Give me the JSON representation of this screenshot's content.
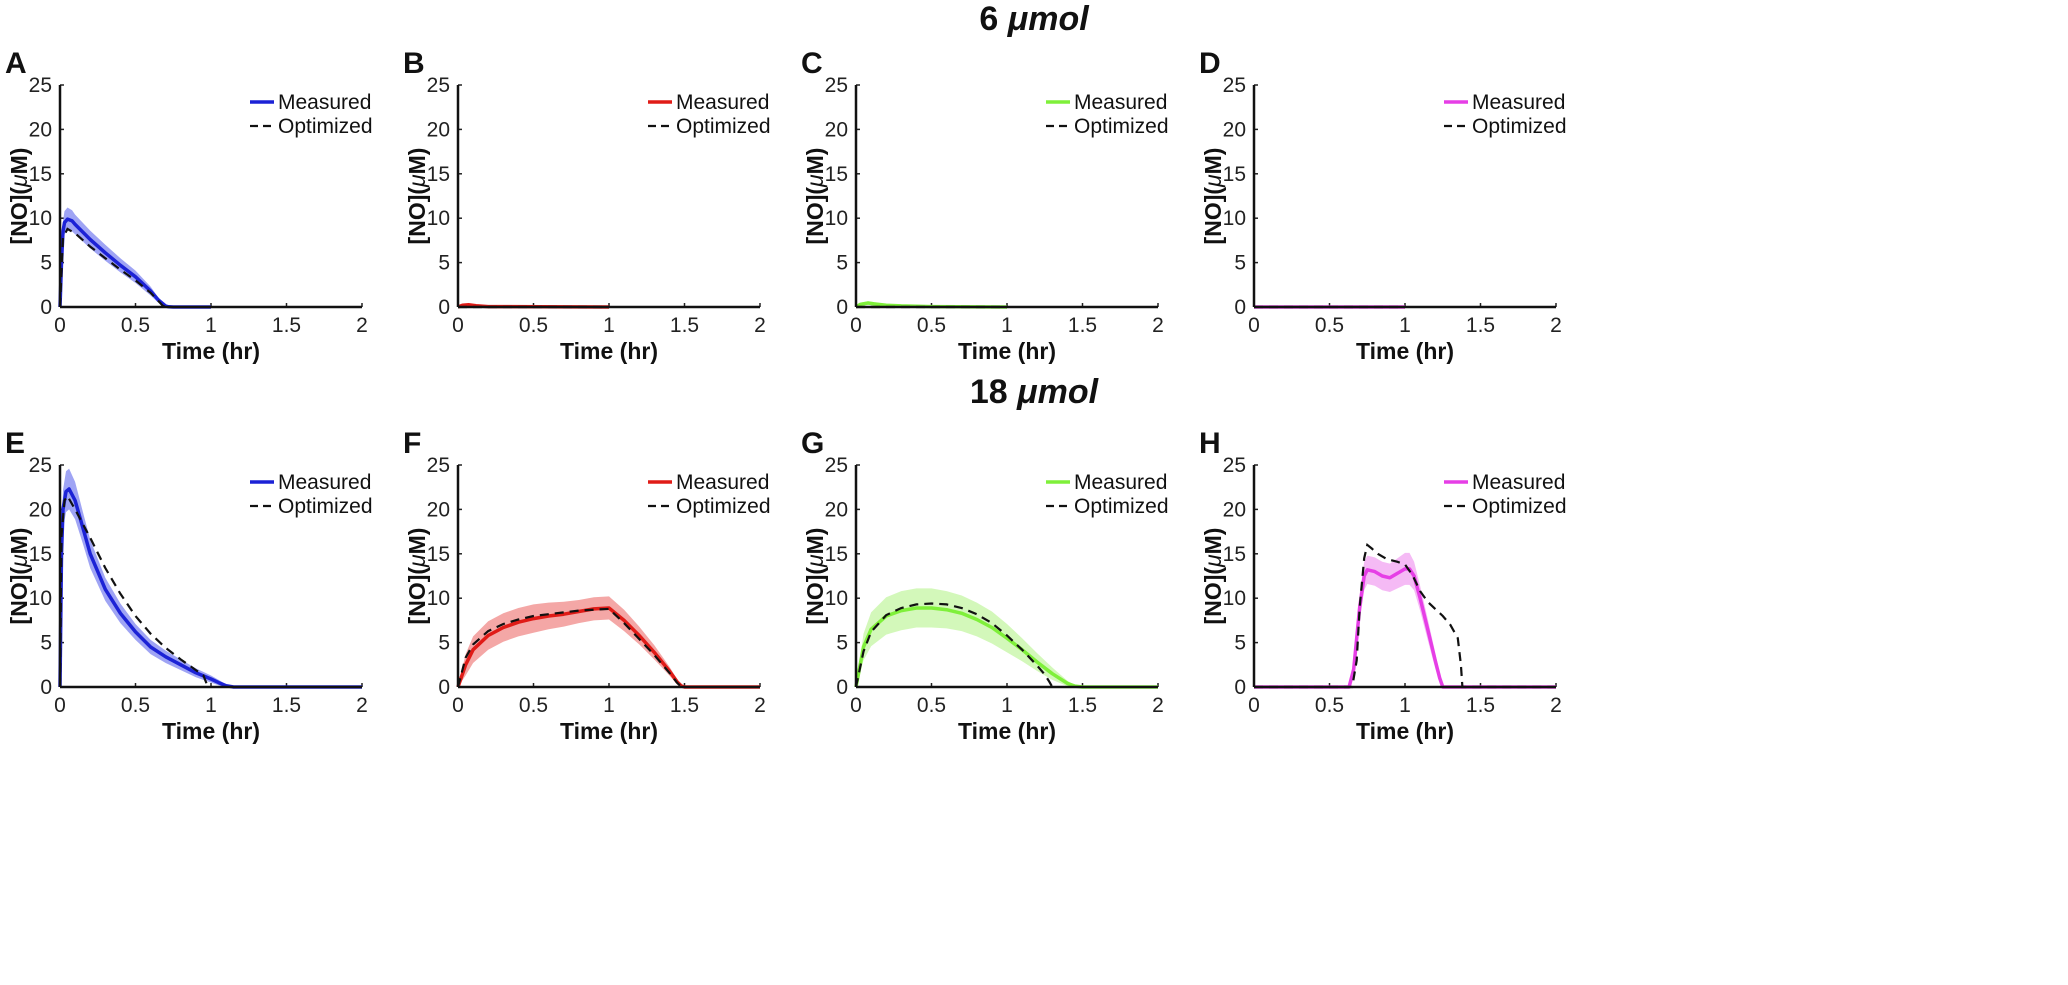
{
  "rows": [
    {
      "title_value": "6",
      "title_unit": "μmol"
    },
    {
      "title_value": "18",
      "title_unit": "μmol"
    }
  ],
  "chart_data": [
    {
      "type": "line",
      "panel": "A",
      "row": 0,
      "color": "#1c22d6",
      "band": "#7f86f0",
      "xlabel": "Time (hr)",
      "ylabel_main": "[NO](",
      "ylabel_mu": "μ",
      "ylabel_end": "M)",
      "xlim": [
        0,
        2
      ],
      "ylim": [
        0,
        25
      ],
      "xticks": [
        "0",
        "0.5",
        "1",
        "1.5",
        "2"
      ],
      "yticks": [
        "0",
        "5",
        "10",
        "15",
        "20",
        "25"
      ],
      "legend": [
        "Measured",
        "Optimized"
      ],
      "series": [
        {
          "name": "Measured",
          "x": [
            0,
            0.01,
            0.02,
            0.03,
            0.05,
            0.08,
            0.1,
            0.2,
            0.3,
            0.4,
            0.5,
            0.6,
            0.65,
            0.7,
            0.72,
            0.75,
            0.8,
            1.0
          ],
          "y": [
            0,
            5,
            8.5,
            9.5,
            9.9,
            9.7,
            9.3,
            7.6,
            6.1,
            4.7,
            3.4,
            1.8,
            0.8,
            0.1,
            0.02,
            0,
            0,
            0
          ],
          "band": [
            0,
            1,
            1.2,
            1.3,
            1.3,
            1.2,
            1.1,
            1.0,
            0.9,
            0.8,
            0.7,
            0.5,
            0.3,
            0.1,
            0,
            0,
            0,
            0
          ]
        },
        {
          "name": "Optimized",
          "x": [
            0,
            0.02,
            0.05,
            0.1,
            0.2,
            0.3,
            0.4,
            0.5,
            0.6,
            0.65,
            0.68,
            0.7
          ],
          "y": [
            0,
            7.8,
            8.8,
            8.3,
            6.8,
            5.5,
            4.2,
            3.0,
            1.6,
            0.7,
            0.15,
            0
          ]
        }
      ]
    },
    {
      "type": "line",
      "panel": "B",
      "row": 0,
      "color": "#e01b17",
      "band": "#f08a88",
      "xlabel": "Time (hr)",
      "ylabel_main": "[NO](",
      "ylabel_mu": "μ",
      "ylabel_end": "M)",
      "xlim": [
        0,
        2
      ],
      "ylim": [
        0,
        25
      ],
      "xticks": [
        "0",
        "0.5",
        "1",
        "1.5",
        "2"
      ],
      "yticks": [
        "0",
        "5",
        "10",
        "15",
        "20",
        "25"
      ],
      "legend": [
        "Measured",
        "Optimized"
      ],
      "series": [
        {
          "name": "Measured",
          "x": [
            0,
            0.03,
            0.07,
            0.12,
            0.2,
            1.0
          ],
          "y": [
            0,
            0.2,
            0.25,
            0.15,
            0.05,
            0
          ],
          "band": [
            0,
            0.1,
            0.1,
            0.1,
            0,
            0
          ]
        },
        {
          "name": "Optimized",
          "x": [
            0,
            1.0
          ],
          "y": [
            0,
            0
          ]
        }
      ]
    },
    {
      "type": "line",
      "panel": "C",
      "row": 0,
      "color": "#7ff03a",
      "band": "#c4f5a3",
      "xlabel": "Time (hr)",
      "ylabel_main": "[NO](",
      "ylabel_mu": "μ",
      "ylabel_end": "M)",
      "xlim": [
        0,
        2
      ],
      "ylim": [
        0,
        25
      ],
      "xticks": [
        "0",
        "0.5",
        "1",
        "1.5",
        "2"
      ],
      "yticks": [
        "0",
        "5",
        "10",
        "15",
        "20",
        "25"
      ],
      "legend": [
        "Measured",
        "Optimized"
      ],
      "series": [
        {
          "name": "Measured",
          "x": [
            0,
            0.03,
            0.08,
            0.12,
            0.2,
            0.3,
            0.5,
            1.0
          ],
          "y": [
            0,
            0.3,
            0.45,
            0.35,
            0.2,
            0.12,
            0.05,
            0
          ],
          "band": [
            0,
            0.2,
            0.2,
            0.2,
            0.1,
            0.1,
            0,
            0
          ]
        },
        {
          "name": "Optimized",
          "x": [
            0,
            1.0
          ],
          "y": [
            0,
            0
          ]
        }
      ]
    },
    {
      "type": "line",
      "panel": "D",
      "row": 0,
      "color": "#e63ee6",
      "band": "#f2a3f2",
      "xlabel": "Time (hr)",
      "ylabel_main": "[NO](",
      "ylabel_mu": "μ",
      "ylabel_end": "M)",
      "xlim": [
        0,
        2
      ],
      "ylim": [
        0,
        25
      ],
      "xticks": [
        "0",
        "0.5",
        "1",
        "1.5",
        "2"
      ],
      "yticks": [
        "0",
        "5",
        "10",
        "15",
        "20",
        "25"
      ],
      "legend": [
        "Measured",
        "Optimized"
      ],
      "series": [
        {
          "name": "Measured",
          "x": [
            0,
            1.0
          ],
          "y": [
            0,
            0
          ],
          "band": [
            0,
            0
          ]
        },
        {
          "name": "Optimized",
          "x": [
            0,
            1.0
          ],
          "y": [
            0,
            0
          ]
        }
      ]
    },
    {
      "type": "line",
      "panel": "E",
      "row": 1,
      "color": "#1c22d6",
      "band": "#7f86f0",
      "xlabel": "Time (hr)",
      "ylabel_main": "[NO](",
      "ylabel_mu": "μ",
      "ylabel_end": "M)",
      "xlim": [
        0,
        2
      ],
      "ylim": [
        0,
        25
      ],
      "xticks": [
        "0",
        "0.5",
        "1",
        "1.5",
        "2"
      ],
      "yticks": [
        "0",
        "5",
        "10",
        "15",
        "20",
        "25"
      ],
      "legend": [
        "Measured",
        "Optimized"
      ],
      "series": [
        {
          "name": "Measured",
          "x": [
            0,
            0.01,
            0.02,
            0.04,
            0.06,
            0.1,
            0.15,
            0.2,
            0.3,
            0.4,
            0.5,
            0.6,
            0.7,
            0.8,
            0.9,
            1.0,
            1.05,
            1.1,
            1.15,
            2.0
          ],
          "y": [
            0,
            15,
            20,
            22,
            22.3,
            21,
            18,
            15,
            11,
            8.3,
            6.2,
            4.5,
            3.4,
            2.5,
            1.6,
            0.9,
            0.5,
            0.15,
            0,
            0
          ],
          "band": [
            0,
            2,
            2.2,
            2.3,
            2.3,
            2.1,
            1.8,
            1.6,
            1.3,
            1.1,
            0.9,
            0.8,
            0.7,
            0.6,
            0.5,
            0.4,
            0.3,
            0.15,
            0,
            0
          ]
        },
        {
          "name": "Optimized",
          "x": [
            0,
            0.01,
            0.03,
            0.05,
            0.1,
            0.2,
            0.3,
            0.4,
            0.5,
            0.6,
            0.7,
            0.8,
            0.9,
            0.95,
            0.97,
            0.98
          ],
          "y": [
            0,
            17,
            21,
            21.5,
            20,
            16.8,
            13.4,
            10.5,
            8.0,
            6.0,
            4.4,
            3.1,
            1.9,
            1.3,
            0.4,
            0
          ]
        }
      ]
    },
    {
      "type": "line",
      "panel": "F",
      "row": 1,
      "color": "#e01b17",
      "band": "#f08a88",
      "xlabel": "Time (hr)",
      "ylabel_main": "[NO](",
      "ylabel_mu": "μ",
      "ylabel_end": "M)",
      "xlim": [
        0,
        2
      ],
      "ylim": [
        0,
        25
      ],
      "xticks": [
        "0",
        "0.5",
        "1",
        "1.5",
        "2"
      ],
      "yticks": [
        "0",
        "5",
        "10",
        "15",
        "20",
        "25"
      ],
      "legend": [
        "Measured",
        "Optimized"
      ],
      "series": [
        {
          "name": "Measured",
          "x": [
            0,
            0.05,
            0.1,
            0.2,
            0.3,
            0.4,
            0.5,
            0.6,
            0.7,
            0.8,
            0.9,
            1.0,
            1.1,
            1.2,
            1.3,
            1.4,
            1.45,
            1.48,
            1.5,
            2.0
          ],
          "y": [
            0,
            2.5,
            4.2,
            5.8,
            6.7,
            7.3,
            7.7,
            8.0,
            8.2,
            8.5,
            8.8,
            8.9,
            7.5,
            5.8,
            3.9,
            1.8,
            0.6,
            0.1,
            0,
            0
          ],
          "band": [
            0,
            1.2,
            1.5,
            1.6,
            1.6,
            1.6,
            1.6,
            1.5,
            1.4,
            1.3,
            1.3,
            1.3,
            1.2,
            1.0,
            0.8,
            0.5,
            0.3,
            0.1,
            0,
            0
          ]
        },
        {
          "name": "Optimized",
          "x": [
            0,
            0.05,
            0.1,
            0.2,
            0.3,
            0.4,
            0.5,
            0.6,
            0.7,
            0.8,
            0.9,
            1.0,
            1.1,
            1.2,
            1.3,
            1.4,
            1.45,
            1.48
          ],
          "y": [
            0,
            3.3,
            4.8,
            6.3,
            7.1,
            7.6,
            8.0,
            8.2,
            8.4,
            8.6,
            8.7,
            8.8,
            7.2,
            5.4,
            3.6,
            1.6,
            0.5,
            0
          ]
        }
      ]
    },
    {
      "type": "line",
      "panel": "G",
      "row": 1,
      "color": "#7ff03a",
      "band": "#c4f5a3",
      "xlabel": "Time (hr)",
      "ylabel_main": "[NO](",
      "ylabel_mu": "μ",
      "ylabel_end": "M)",
      "xlim": [
        0,
        2
      ],
      "ylim": [
        0,
        25
      ],
      "xticks": [
        "0",
        "0.5",
        "1",
        "1.5",
        "2"
      ],
      "yticks": [
        "0",
        "5",
        "10",
        "15",
        "20",
        "25"
      ],
      "legend": [
        "Measured",
        "Optimized"
      ],
      "series": [
        {
          "name": "Measured",
          "x": [
            0,
            0.05,
            0.1,
            0.2,
            0.3,
            0.4,
            0.5,
            0.6,
            0.7,
            0.8,
            0.9,
            1.0,
            1.1,
            1.2,
            1.3,
            1.4,
            1.45,
            1.5,
            2.0
          ],
          "y": [
            0,
            4.5,
            6.5,
            8.0,
            8.6,
            8.9,
            8.9,
            8.7,
            8.3,
            7.6,
            6.7,
            5.5,
            4.2,
            2.8,
            1.5,
            0.4,
            0.1,
            0,
            0
          ],
          "band": [
            0,
            1.5,
            1.9,
            2.1,
            2.2,
            2.2,
            2.2,
            2.1,
            2.0,
            1.9,
            1.8,
            1.6,
            1.3,
            1.0,
            0.7,
            0.3,
            0.1,
            0,
            0
          ]
        },
        {
          "name": "Optimized",
          "x": [
            0,
            0.05,
            0.1,
            0.2,
            0.3,
            0.4,
            0.5,
            0.6,
            0.7,
            0.8,
            0.9,
            1.0,
            1.1,
            1.2,
            1.25,
            1.28,
            1.3
          ],
          "y": [
            0,
            4.0,
            6.2,
            8.1,
            8.9,
            9.3,
            9.4,
            9.3,
            8.9,
            8.2,
            7.2,
            5.8,
            4.2,
            2.4,
            1.4,
            0.6,
            0
          ]
        }
      ]
    },
    {
      "type": "line",
      "panel": "H",
      "row": 1,
      "color": "#e63ee6",
      "band": "#f2a3f2",
      "xlabel": "Time (hr)",
      "ylabel_main": "[NO](",
      "ylabel_mu": "μ",
      "ylabel_end": "M)",
      "xlim": [
        0,
        2
      ],
      "ylim": [
        0,
        25
      ],
      "xticks": [
        "0",
        "0.5",
        "1",
        "1.5",
        "2"
      ],
      "yticks": [
        "0",
        "5",
        "10",
        "15",
        "20",
        "25"
      ],
      "legend": [
        "Measured",
        "Optimized"
      ],
      "series": [
        {
          "name": "Measured",
          "x": [
            0,
            0.63,
            0.66,
            0.7,
            0.73,
            0.75,
            0.8,
            0.85,
            0.9,
            0.95,
            1.0,
            1.03,
            1.06,
            1.1,
            1.15,
            1.2,
            1.23,
            1.25,
            2.0
          ],
          "y": [
            0,
            0,
            2,
            9,
            12.5,
            13.2,
            13.0,
            12.5,
            12.3,
            12.8,
            13.3,
            13.3,
            12.5,
            10,
            6.5,
            3,
            1,
            0,
            0
          ],
          "band": [
            0,
            0,
            0.8,
            1.5,
            1.6,
            1.6,
            1.6,
            1.6,
            1.6,
            1.7,
            1.8,
            1.8,
            1.6,
            1.4,
            1.2,
            0.9,
            0.5,
            0,
            0
          ]
        },
        {
          "name": "Optimized",
          "x": [
            0,
            0.65,
            0.68,
            0.7,
            0.73,
            0.75,
            0.78,
            0.82,
            0.88,
            0.95,
            1.0,
            1.05,
            1.1,
            1.15,
            1.2,
            1.25,
            1.3,
            1.35,
            1.37,
            1.38,
            2.0
          ],
          "y": [
            0,
            0,
            3,
            9,
            14.5,
            16,
            15.6,
            15.0,
            14.4,
            14.1,
            13.8,
            12.6,
            10.8,
            9.6,
            8.8,
            8.0,
            7.0,
            5.5,
            2.5,
            0,
            0
          ]
        }
      ]
    }
  ]
}
